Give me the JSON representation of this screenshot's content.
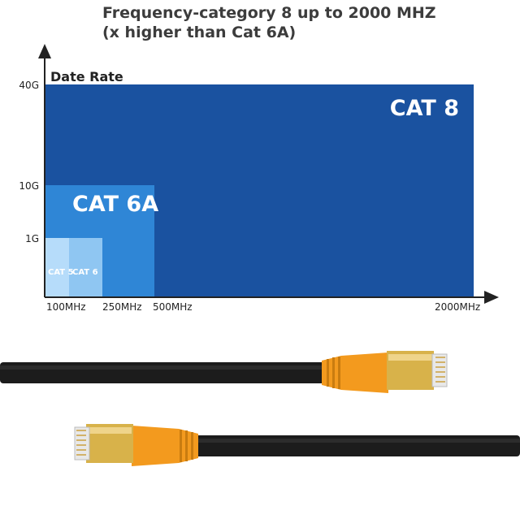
{
  "title_lines": [
    "Frequency-category 8 up to 2000 MHZ",
    "(x higher than Cat 6A)"
  ],
  "chart_data": {
    "type": "area",
    "ylabel": "Date Rate",
    "xlabel": "",
    "x_ticks": [
      {
        "label": "100MHz",
        "value": 100
      },
      {
        "label": "250MHz",
        "value": 250
      },
      {
        "label": "500MHz",
        "value": 500
      },
      {
        "label": "2000MHz",
        "value": 2000
      }
    ],
    "y_ticks": [
      {
        "label": "1G",
        "value": 1
      },
      {
        "label": "10G",
        "value": 10
      },
      {
        "label": "40G",
        "value": 40
      }
    ],
    "series": [
      {
        "name": "CAT 8",
        "frequency_mhz": 2000,
        "data_rate_gbps": 40,
        "color": "#1a52a0"
      },
      {
        "name": "CAT 6A",
        "frequency_mhz": 500,
        "data_rate_gbps": 10,
        "color": "#2f86d6"
      },
      {
        "name": "CAT 6",
        "frequency_mhz": 250,
        "data_rate_gbps": 1,
        "color": "#8fc6f2"
      },
      {
        "name": "CAT 5",
        "frequency_mhz": 100,
        "data_rate_gbps": 1,
        "color": "#b6dcfa"
      }
    ]
  },
  "colors": {
    "cable": "#1c1c1c",
    "boot": "#f39a1e",
    "plug_gold": "#d8b24a",
    "axis": "#222222"
  }
}
